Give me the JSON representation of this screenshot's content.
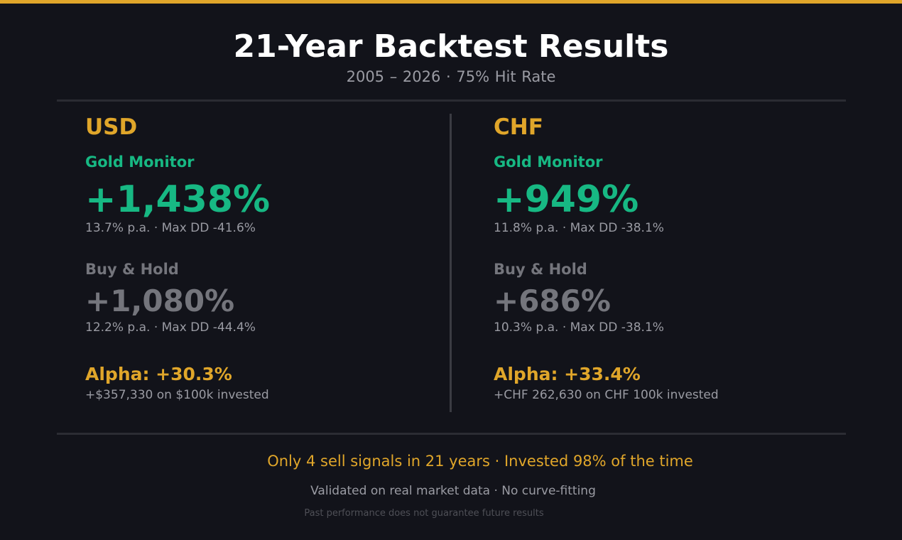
{
  "header": {
    "title": "21-Year Backtest Results",
    "subtitle": "2005 – 2026  ·  75% Hit Rate"
  },
  "columns": [
    {
      "currency": "USD",
      "gold_monitor": {
        "label": "Gold Monitor",
        "value": "+1,438%",
        "stats": "13.7% p.a.  ·  Max DD -41.6%"
      },
      "buy_hold": {
        "label": "Buy & Hold",
        "value": "+1,080%",
        "stats": "12.2% p.a.  ·  Max DD -44.4%"
      },
      "alpha": {
        "label": "Alpha: +30.3%",
        "note": "+$357,330 on $100k invested"
      }
    },
    {
      "currency": "CHF",
      "gold_monitor": {
        "label": "Gold Monitor",
        "value": "+949%",
        "stats": "11.8% p.a.  ·  Max DD -38.1%"
      },
      "buy_hold": {
        "label": "Buy & Hold",
        "value": "+686%",
        "stats": "10.3% p.a.  ·  Max DD -38.1%"
      },
      "alpha": {
        "label": "Alpha: +33.4%",
        "note": "+CHF 262,630 on CHF 100k invested"
      }
    }
  ],
  "footer": {
    "highlight": "Only 4 sell signals in 21 years  ·  Invested 98% of the time",
    "validation": "Validated on real market data  ·  No curve-fitting",
    "disclaimer": "Past performance does not guarantee future results"
  },
  "colors": {
    "accent_gold": "#e0a62a",
    "strategy_green": "#17b883",
    "muted_gray": "#74757c",
    "background": "#12131a"
  }
}
